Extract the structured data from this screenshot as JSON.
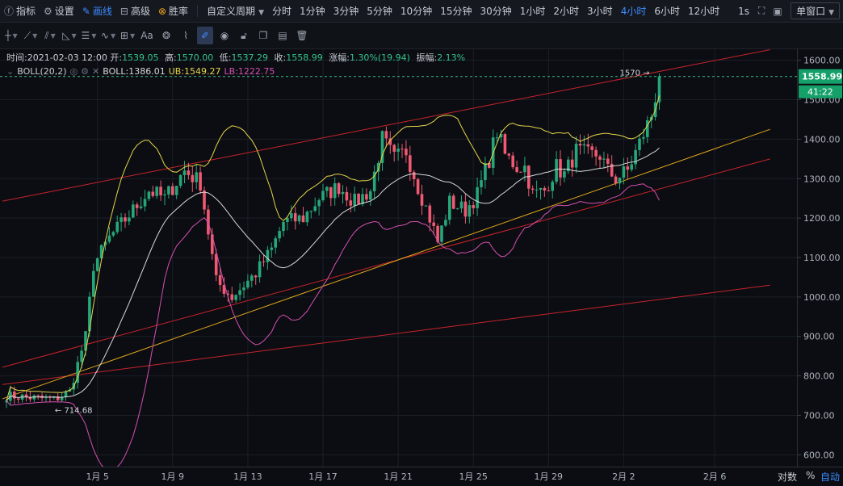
{
  "toolbar": {
    "items": [
      {
        "icon": "indicator-icon",
        "label": "指标",
        "active": false
      },
      {
        "icon": "gear-icon",
        "label": "设置",
        "active": false
      },
      {
        "icon": "pen-icon",
        "label": "画线",
        "active": true
      },
      {
        "icon": "advanced-icon",
        "label": "高级",
        "active": false
      },
      {
        "icon": "victory-icon",
        "label": "胜率",
        "active": false
      }
    ],
    "custom_period": "自定义周期",
    "periods": [
      "分时",
      "1分钟",
      "3分钟",
      "5分钟",
      "10分钟",
      "15分钟",
      "30分钟",
      "1小时",
      "2小时",
      "3小时",
      "4小时",
      "6小时",
      "12小时"
    ],
    "active_period": "4小时",
    "right_period": "1s",
    "window_select": "单窗口"
  },
  "drawing_tools": [
    "crosshair-icon",
    "line-icon",
    "multi-line-icon",
    "angle-icon",
    "horizontal-lines-icon",
    "wave-icon",
    "fib-grid-icon",
    "text-icon",
    "shapes-icon",
    "ruler-icon",
    "magnet-draw-icon",
    "visibility-icon",
    "lock-icon",
    "copy-icon",
    "layers-icon",
    "trash-icon"
  ],
  "legend": {
    "time_label": "时间:",
    "time": "2021-02-03 12:00",
    "open_label": "开:",
    "open": "1539.05",
    "high_label": "高:",
    "high": "1570.00",
    "low_label": "低:",
    "low": "1537.29",
    "close_label": "收:",
    "close": "1558.99",
    "change_label": "涨幅:",
    "change": "1.30%(19.94)",
    "amp_label": "振幅:",
    "amp": "2.13%",
    "boll_name": "BOLL(20,2)",
    "boll_mid": "BOLL:1386.01",
    "boll_ub": "UB:1549.27",
    "boll_lb": "LB:1222.75"
  },
  "chart_data": {
    "type": "candlestick",
    "interval": "4小时",
    "x_ticks": [
      "1月 5",
      "1月 9",
      "1月 13",
      "1月 17",
      "1月 21",
      "1月 25",
      "1月 29",
      "2月 2",
      "2月 6"
    ],
    "y_ticks": [
      600,
      700,
      800,
      900,
      1000,
      1100,
      1200,
      1300,
      1400,
      1500,
      1600
    ],
    "ylim": [
      570,
      1630
    ],
    "current_price": 1558.99,
    "countdown": "41:22",
    "high_marker": {
      "label": "1570",
      "value": 1570
    },
    "low_marker": {
      "label": "714.68",
      "value": 714.68
    },
    "anchors": [
      {
        "t": 0,
        "p": 750
      },
      {
        "t": 12,
        "p": 740
      },
      {
        "t": 16,
        "p": 760
      },
      {
        "t": 20,
        "p": 900
      },
      {
        "t": 22,
        "p": 1080
      },
      {
        "t": 26,
        "p": 1150
      },
      {
        "t": 32,
        "p": 1220
      },
      {
        "t": 36,
        "p": 1270
      },
      {
        "t": 40,
        "p": 1250
      },
      {
        "t": 45,
        "p": 1320
      },
      {
        "t": 49,
        "p": 1290
      },
      {
        "t": 53,
        "p": 1040
      },
      {
        "t": 57,
        "p": 1000
      },
      {
        "t": 63,
        "p": 1060
      },
      {
        "t": 67,
        "p": 1120
      },
      {
        "t": 70,
        "p": 1190
      },
      {
        "t": 75,
        "p": 1200
      },
      {
        "t": 79,
        "p": 1250
      },
      {
        "t": 84,
        "p": 1280
      },
      {
        "t": 88,
        "p": 1240
      },
      {
        "t": 92,
        "p": 1270
      },
      {
        "t": 95,
        "p": 1400
      },
      {
        "t": 98,
        "p": 1350
      },
      {
        "t": 101,
        "p": 1370
      },
      {
        "t": 104,
        "p": 1280
      },
      {
        "t": 107,
        "p": 1200
      },
      {
        "t": 109,
        "p": 1140
      },
      {
        "t": 112,
        "p": 1240
      },
      {
        "t": 116,
        "p": 1220
      },
      {
        "t": 119,
        "p": 1260
      },
      {
        "t": 122,
        "p": 1350
      },
      {
        "t": 124,
        "p": 1420
      },
      {
        "t": 126,
        "p": 1360
      },
      {
        "t": 129,
        "p": 1330
      },
      {
        "t": 131,
        "p": 1330
      },
      {
        "t": 133,
        "p": 1260
      },
      {
        "t": 136,
        "p": 1270
      },
      {
        "t": 139,
        "p": 1330
      },
      {
        "t": 141,
        "p": 1310
      },
      {
        "t": 144,
        "p": 1370
      },
      {
        "t": 147,
        "p": 1360
      },
      {
        "t": 150,
        "p": 1360
      },
      {
        "t": 152,
        "p": 1320
      },
      {
        "t": 154,
        "p": 1300
      },
      {
        "t": 157,
        "p": 1320
      },
      {
        "t": 160,
        "p": 1390
      },
      {
        "t": 163,
        "p": 1460
      },
      {
        "t": 165,
        "p": 1559
      }
    ],
    "series": [
      {
        "name": "BOLL",
        "color": "#d8d8d8"
      },
      {
        "name": "UB",
        "color": "#e5d44a"
      },
      {
        "name": "LB",
        "color": "#d64fb0"
      }
    ],
    "trend_lines": [
      {
        "color": "#c8232c",
        "from": {
          "t": -1,
          "p": 1243
        },
        "to": {
          "t": 193,
          "p": 1627
        }
      },
      {
        "color": "#c8232c",
        "from": {
          "t": -1,
          "p": 822
        },
        "to": {
          "t": 193,
          "p": 1350
        }
      },
      {
        "color": "#c8232c",
        "from": {
          "t": -1,
          "p": 778
        },
        "to": {
          "t": 193,
          "p": 1030
        }
      },
      {
        "color": "#e1a81c",
        "from": {
          "t": -1,
          "p": 742
        },
        "to": {
          "t": 193,
          "p": 1425
        }
      }
    ],
    "up_color": "#26a77a",
    "down_color": "#ef5a72"
  },
  "axis_toggles": {
    "log": "对数",
    "percent": "%",
    "auto": "自动"
  }
}
